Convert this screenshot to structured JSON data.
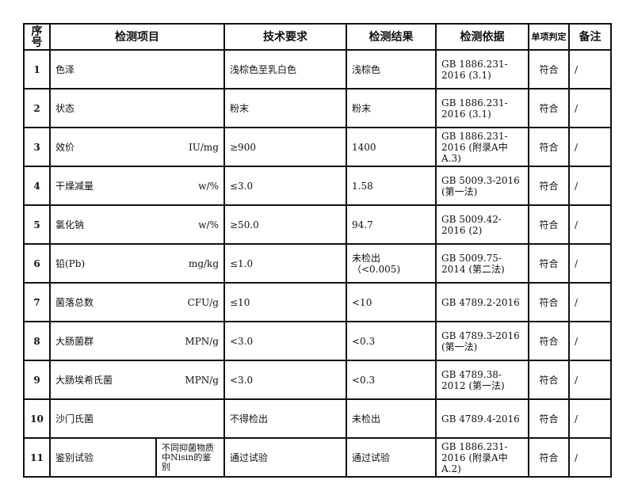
{
  "headers": [
    "序号",
    "检测项目",
    "技术要求",
    "检测结果",
    "检测依据",
    "单项判定",
    "备注"
  ],
  "rows": [
    {
      "no": "1",
      "item": "色泽",
      "unit": "",
      "req": "浅棕色至乳白色",
      "result": "浅棕色",
      "basis": "GB 1886.231-2016 (3.1)",
      "judge": "符合",
      "remark": "/"
    },
    {
      "no": "2",
      "item": "状态",
      "unit": "",
      "req": "粉末",
      "result": "粉末",
      "basis": "GB 1886.231-2016 (3.1)",
      "judge": "符合",
      "remark": "/"
    },
    {
      "no": "3",
      "item": "效价",
      "unit": "IU/mg",
      "req": "≥900",
      "result": "1400",
      "basis": "GB 1886.231-2016 (附录A中A.3)",
      "judge": "符合",
      "remark": "/"
    },
    {
      "no": "4",
      "item": "干燥减量",
      "unit": "w/%",
      "req": "≤3.0",
      "result": "1.58",
      "basis": "GB 5009.3-2016 (第一法)",
      "judge": "符合",
      "remark": "/"
    },
    {
      "no": "5",
      "item": "氯化钠",
      "unit": "w/%",
      "req": "≥50.0",
      "result": "94.7",
      "basis": "GB 5009.42-2016 (2)",
      "judge": "符合",
      "remark": "/"
    },
    {
      "no": "6",
      "item": "铅(Pb)",
      "unit": "mg/kg",
      "req": "≤1.0",
      "result": "未检出 （<0.005)",
      "basis": "GB 5009.75-2014 (第二法)",
      "judge": "符合",
      "remark": "/"
    },
    {
      "no": "7",
      "item": "菌落总数",
      "unit": "CFU/g",
      "req": "≤10",
      "result": "<10",
      "basis": "GB 4789.2-2016",
      "judge": "符合",
      "remark": "/"
    },
    {
      "no": "8",
      "item": "大肠菌群",
      "unit": "MPN/g",
      "req": "<3.0",
      "result": "<0.3",
      "basis": "GB 4789.3-2016 (第一法)",
      "judge": "符合",
      "remark": "/"
    },
    {
      "no": "9",
      "item": "大肠埃希氏菌",
      "unit": "MPN/g",
      "req": "<3.0",
      "result": "<0.3",
      "basis": "GB 4789.38-2012 (第一法)",
      "judge": "符合",
      "remark": "/"
    },
    {
      "no": "10",
      "item": "沙门氏菌",
      "unit": "",
      "req": "不得检出",
      "result": "未检出",
      "basis": "GB 4789.4-2016",
      "judge": "符合",
      "remark": "/"
    }
  ],
  "last_row": {
    "no": "11",
    "item": "鉴别试验",
    "sub": "不同抑菌物质中Nisin的鉴别",
    "req": "通过试验",
    "result": "通过试验",
    "basis": "GB 1886.231-2016 (附录A中A.2)",
    "judge": "符合",
    "remark": "/"
  }
}
